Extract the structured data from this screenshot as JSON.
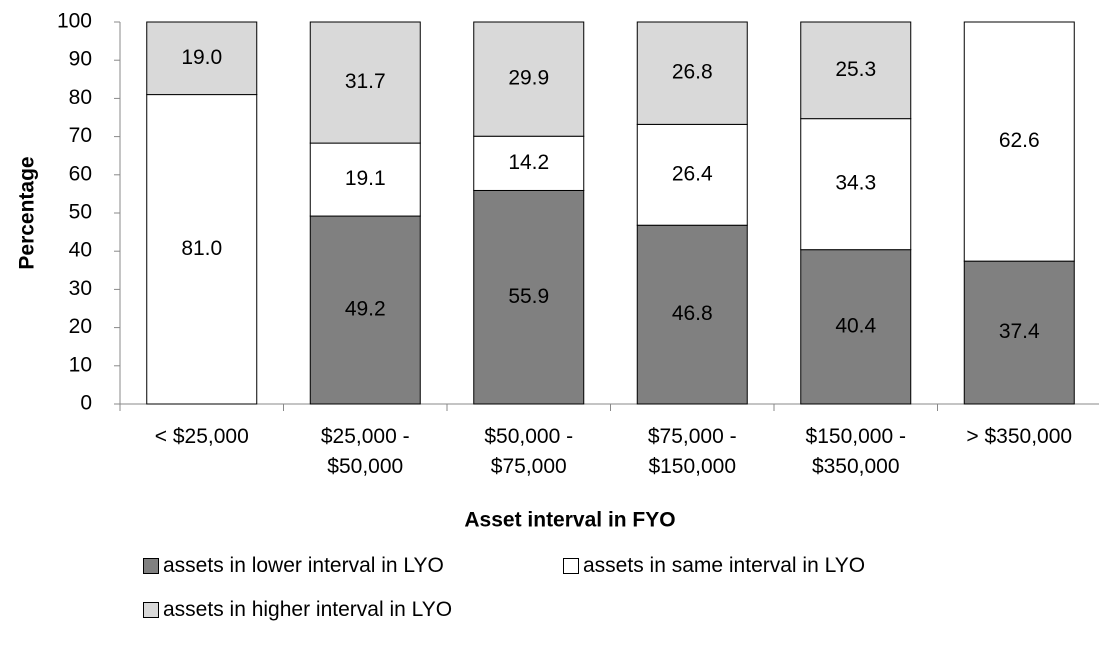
{
  "chart_data": {
    "type": "stacked-bar",
    "categories": [
      "< $25,000",
      "$25,000 - $50,000",
      "$50,000 - $75,000",
      "$75,000 - $150,000",
      "$150,000 - $350,000",
      "> $350,000"
    ],
    "series": [
      {
        "name": "assets in lower interval in LYO",
        "color": "#808080",
        "values": [
          null,
          49.2,
          55.9,
          46.8,
          40.4,
          37.4
        ],
        "value_labels": [
          null,
          "49.2",
          "55.9",
          "46.8",
          "40.4",
          "37.4"
        ]
      },
      {
        "name": "assets in same interval in LYO",
        "color": "#ffffff",
        "values": [
          81.0,
          19.1,
          14.2,
          26.4,
          34.3,
          62.6
        ],
        "value_labels": [
          "81.0",
          "19.1",
          "14.2",
          "26.4",
          "34.3",
          "62.6"
        ]
      },
      {
        "name": "assets in higher interval in LYO",
        "color": "#d9d9d9",
        "values": [
          19.0,
          31.7,
          29.9,
          26.8,
          25.3,
          null
        ],
        "value_labels": [
          "19.0",
          "31.7",
          "29.9",
          "26.8",
          "25.3",
          null
        ]
      }
    ],
    "x_label": "Asset interval in FYO",
    "y_label": "Percentage",
    "ylim": [
      0,
      100
    ],
    "yticks": [
      0,
      10,
      20,
      30,
      40,
      50,
      60,
      70,
      80,
      90,
      100
    ],
    "grid": false
  }
}
